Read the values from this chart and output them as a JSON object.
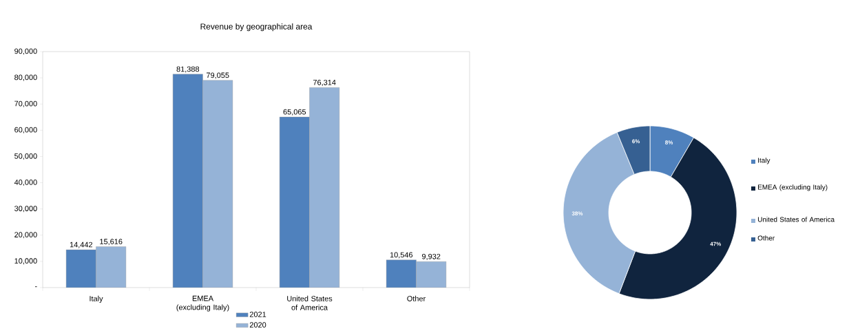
{
  "chart_data": [
    {
      "type": "bar",
      "title": "Revenue by geographical area",
      "categories": [
        "Italy",
        "EMEA (excluding Italy)",
        "United States of America",
        "Other"
      ],
      "series": [
        {
          "name": "2021",
          "color": "#4f81bd",
          "values": [
            14442,
            81388,
            65065,
            10546
          ],
          "value_labels": [
            "14,442",
            "81,388",
            "65,065",
            "10,546"
          ]
        },
        {
          "name": "2020",
          "color": "#95b3d7",
          "values": [
            15616,
            79055,
            76314,
            9932
          ],
          "value_labels": [
            "15,616",
            "79,055",
            "76,314",
            "9,932"
          ]
        }
      ],
      "ylim": [
        0,
        90000
      ],
      "yticks": [
        {
          "value": 0,
          "label": "-"
        },
        {
          "value": 10000,
          "label": "10,000"
        },
        {
          "value": 20000,
          "label": "20,000"
        },
        {
          "value": 30000,
          "label": "30,000"
        },
        {
          "value": 40000,
          "label": "40,000"
        },
        {
          "value": 50000,
          "label": "50,000"
        },
        {
          "value": 60000,
          "label": "60,000"
        },
        {
          "value": 70000,
          "label": "70,000"
        },
        {
          "value": 80000,
          "label": "80,000"
        },
        {
          "value": 90000,
          "label": "90,000"
        }
      ],
      "legend": "bottom"
    },
    {
      "type": "donut",
      "categories": [
        "Italy",
        "EMEA (excluding Italy)",
        "United States of America",
        "Other"
      ],
      "values": [
        8.4,
        47.4,
        38.0,
        6.2
      ],
      "value_labels": [
        "8%",
        "47%",
        "38%",
        "6%"
      ],
      "colors": [
        "#4f81bd",
        "#10243e",
        "#95b3d7",
        "#366092"
      ],
      "legend": "right"
    }
  ]
}
